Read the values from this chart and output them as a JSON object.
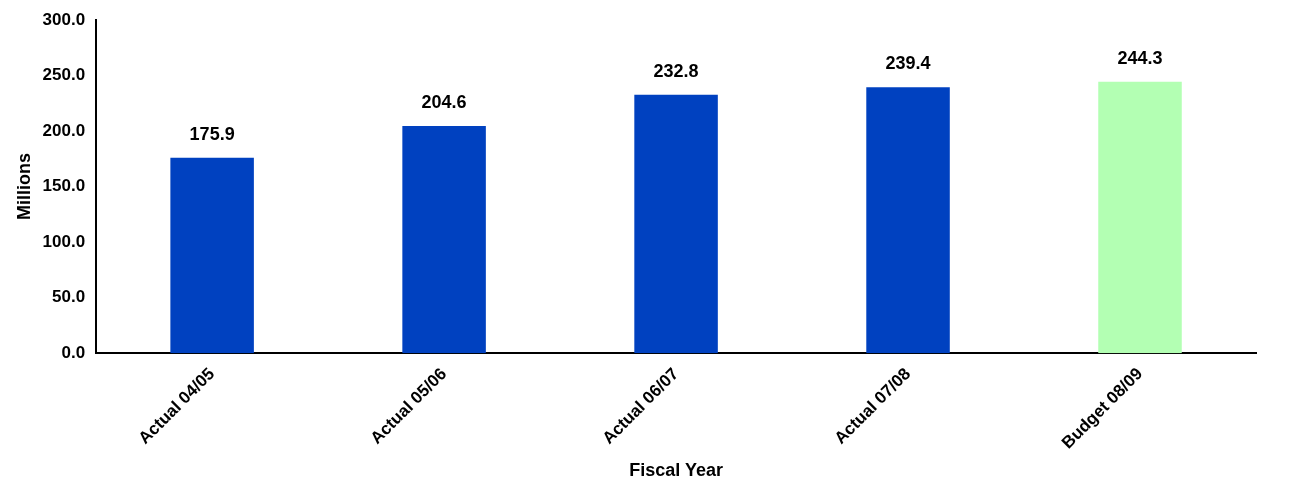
{
  "chart_data": {
    "type": "bar",
    "xlabel": "Fiscal Year",
    "ylabel": "Millions",
    "categories": [
      "Actual 04/05",
      "Actual 05/06",
      "Actual 06/07",
      "Actual 07/08",
      "Budget 08/09"
    ],
    "values": [
      175.9,
      204.6,
      232.8,
      239.4,
      244.3
    ],
    "colors": [
      "#0041c0",
      "#0041c0",
      "#0041c0",
      "#0041c0",
      "#b3ffb3"
    ],
    "ylim": [
      0,
      300
    ],
    "yticks": [
      {
        "value": 0,
        "label": "0.0"
      },
      {
        "value": 50,
        "label": "50.0"
      },
      {
        "value": 100,
        "label": "100.0"
      },
      {
        "value": 150,
        "label": "150.0"
      },
      {
        "value": 200,
        "label": "200.0"
      },
      {
        "value": 250,
        "label": "250.0"
      },
      {
        "value": 300,
        "label": "300.0"
      }
    ],
    "data_labels": true,
    "grid": false,
    "legend": false
  }
}
